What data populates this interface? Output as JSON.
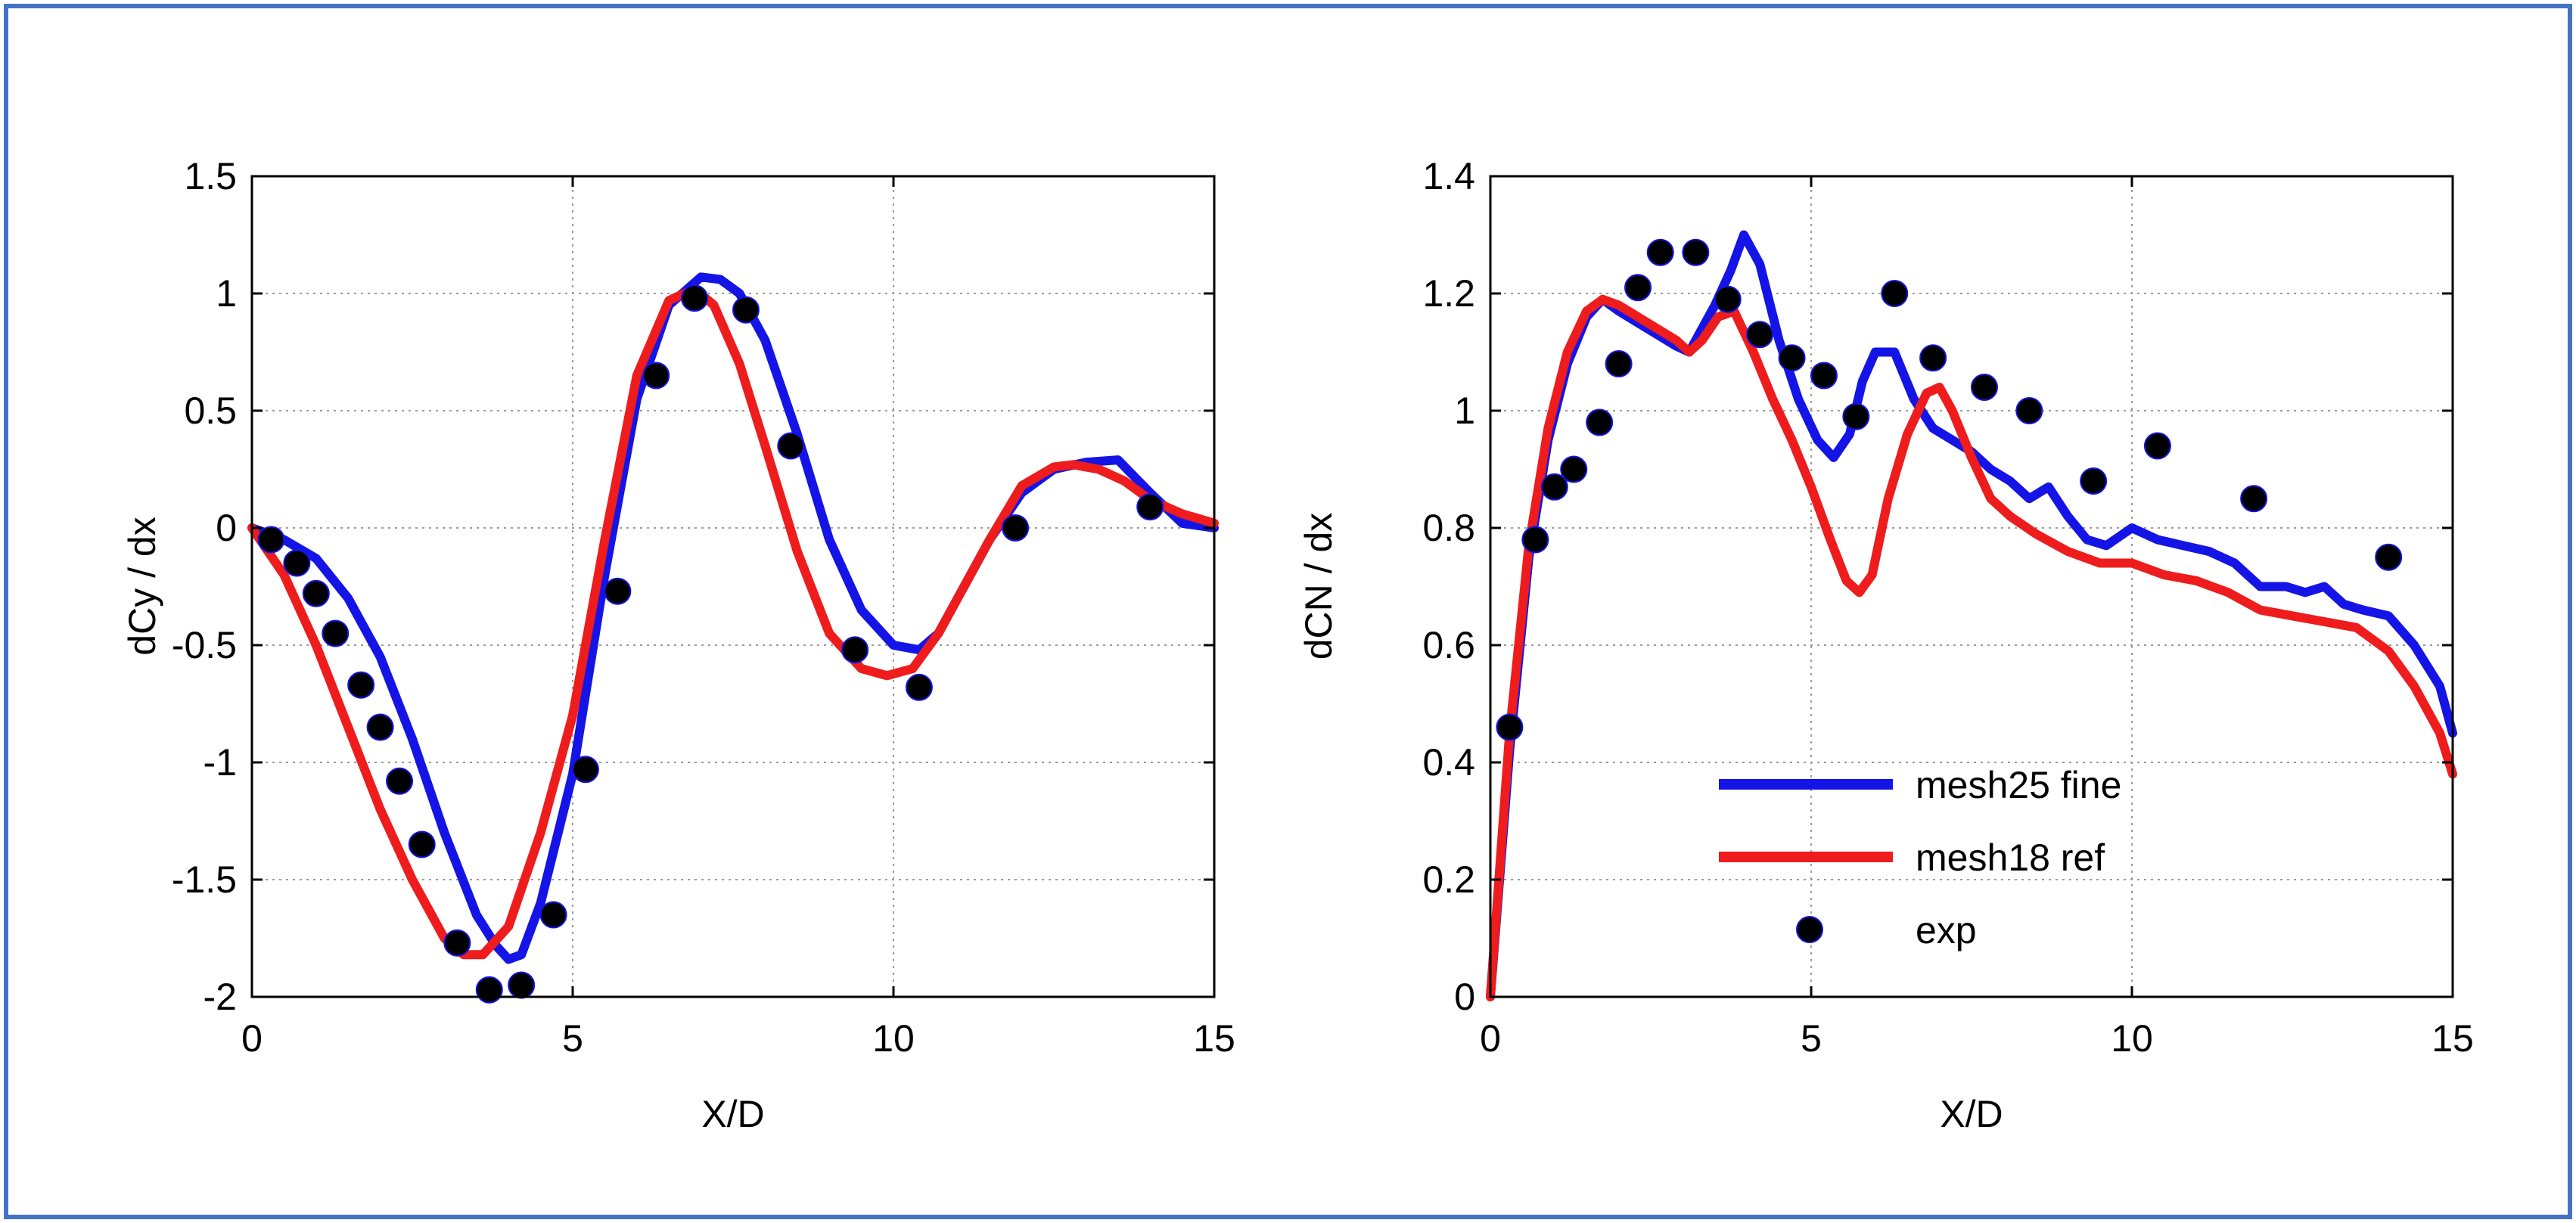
{
  "colors": {
    "blue": "#1414e6",
    "red": "#ee1c1c",
    "marker": "#000000",
    "frame": "#4472c4"
  },
  "series_names": [
    "mesh25 fine",
    "mesh18 ref",
    "exp"
  ],
  "chart_data": [
    {
      "type": "line",
      "xlabel": "X/D",
      "ylabel": "dCy / dx",
      "xlim": [
        0,
        15
      ],
      "ylim": [
        -2,
        1.5
      ],
      "xticks": [
        "0",
        "5",
        "10",
        "15"
      ],
      "yticks": [
        "-2",
        "-1.5",
        "-1",
        "-0.5",
        "0",
        "0.5",
        "1",
        "1.5"
      ],
      "grid": true,
      "series": [
        {
          "name": "mesh25 fine",
          "style": "line",
          "color": "#1414e6",
          "x": [
            0,
            0.5,
            1.0,
            1.5,
            2.0,
            2.5,
            3.0,
            3.5,
            3.8,
            4.0,
            4.2,
            4.5,
            5.0,
            5.5,
            6.0,
            6.5,
            7.0,
            7.3,
            7.6,
            8.0,
            8.5,
            9.0,
            9.5,
            10.0,
            10.4,
            10.7,
            11.0,
            11.5,
            12.0,
            12.5,
            13.0,
            13.5,
            14.0,
            14.5,
            15.0
          ],
          "y": [
            0,
            -0.05,
            -0.13,
            -0.3,
            -0.55,
            -0.9,
            -1.3,
            -1.65,
            -1.78,
            -1.84,
            -1.82,
            -1.6,
            -1.05,
            -0.2,
            0.55,
            0.95,
            1.07,
            1.06,
            1.0,
            0.8,
            0.4,
            -0.05,
            -0.35,
            -0.5,
            -0.52,
            -0.45,
            -0.3,
            -0.05,
            0.15,
            0.25,
            0.28,
            0.29,
            0.15,
            0.02,
            0.0
          ]
        },
        {
          "name": "mesh18 ref",
          "style": "line",
          "color": "#ee1c1c",
          "x": [
            0,
            0.5,
            1.0,
            1.5,
            2.0,
            2.5,
            3.0,
            3.3,
            3.6,
            4.0,
            4.5,
            5.0,
            5.5,
            6.0,
            6.5,
            6.9,
            7.2,
            7.6,
            8.0,
            8.5,
            9.0,
            9.5,
            9.9,
            10.3,
            10.7,
            11.0,
            11.5,
            12.0,
            12.5,
            12.8,
            13.2,
            13.6,
            14.0,
            14.5,
            15.0
          ],
          "y": [
            0,
            -0.2,
            -0.5,
            -0.85,
            -1.2,
            -1.5,
            -1.75,
            -1.82,
            -1.82,
            -1.7,
            -1.3,
            -0.8,
            -0.05,
            0.65,
            0.97,
            1.02,
            0.95,
            0.7,
            0.35,
            -0.1,
            -0.45,
            -0.6,
            -0.63,
            -0.6,
            -0.45,
            -0.3,
            -0.05,
            0.18,
            0.26,
            0.27,
            0.25,
            0.2,
            0.12,
            0.06,
            0.02
          ]
        },
        {
          "name": "exp",
          "style": "markers",
          "color": "#000000",
          "x": [
            0.3,
            0.7,
            1.0,
            1.3,
            1.7,
            2.0,
            2.3,
            2.65,
            3.2,
            3.7,
            4.2,
            4.7,
            5.2,
            5.7,
            6.3,
            6.9,
            7.7,
            8.4,
            9.4,
            10.4,
            11.9,
            14.0
          ],
          "y": [
            -0.05,
            -0.15,
            -0.28,
            -0.45,
            -0.67,
            -0.85,
            -1.08,
            -1.35,
            -1.77,
            -1.97,
            -1.95,
            -1.65,
            -1.03,
            -0.27,
            0.65,
            0.98,
            0.93,
            0.35,
            -0.52,
            -0.68,
            0.0,
            0.09
          ]
        }
      ]
    },
    {
      "type": "line",
      "xlabel": "X/D",
      "ylabel": "dCN / dx",
      "xlim": [
        0,
        15
      ],
      "ylim": [
        0,
        1.4
      ],
      "xticks": [
        "0",
        "5",
        "10",
        "15"
      ],
      "yticks": [
        "0",
        "0.2",
        "0.4",
        "0.6",
        "0.8",
        "1",
        "1.2",
        "1.4"
      ],
      "grid": true,
      "legend": {
        "placement": "bottom-right",
        "entries": [
          "mesh25 fine",
          "mesh18 ref",
          "exp"
        ]
      },
      "series": [
        {
          "name": "mesh25 fine",
          "style": "line",
          "color": "#1414e6",
          "x": [
            0,
            0.3,
            0.6,
            0.9,
            1.2,
            1.5,
            1.75,
            2.0,
            2.3,
            2.6,
            2.9,
            3.1,
            3.3,
            3.5,
            3.75,
            3.95,
            4.2,
            4.5,
            4.8,
            5.1,
            5.35,
            5.6,
            5.8,
            6.0,
            6.3,
            6.6,
            6.9,
            7.2,
            7.5,
            7.8,
            8.1,
            8.4,
            8.7,
            9.0,
            9.3,
            9.6,
            10.0,
            10.4,
            10.8,
            11.2,
            11.6,
            12.0,
            12.4,
            12.7,
            13.0,
            13.3,
            13.6,
            14.0,
            14.4,
            14.8,
            15.0
          ],
          "y": [
            0.0,
            0.42,
            0.75,
            0.95,
            1.08,
            1.16,
            1.19,
            1.17,
            1.15,
            1.13,
            1.11,
            1.1,
            1.14,
            1.18,
            1.24,
            1.3,
            1.25,
            1.12,
            1.02,
            0.95,
            0.92,
            0.96,
            1.05,
            1.1,
            1.1,
            1.02,
            0.97,
            0.95,
            0.93,
            0.9,
            0.88,
            0.85,
            0.87,
            0.82,
            0.78,
            0.77,
            0.8,
            0.78,
            0.77,
            0.76,
            0.74,
            0.7,
            0.7,
            0.69,
            0.7,
            0.67,
            0.66,
            0.65,
            0.6,
            0.53,
            0.45
          ]
        },
        {
          "name": "mesh18 ref",
          "style": "line",
          "color": "#ee1c1c",
          "x": [
            0,
            0.3,
            0.6,
            0.9,
            1.2,
            1.5,
            1.75,
            2.0,
            2.3,
            2.6,
            2.9,
            3.1,
            3.3,
            3.55,
            3.8,
            4.1,
            4.4,
            4.7,
            5.0,
            5.3,
            5.55,
            5.75,
            5.95,
            6.2,
            6.5,
            6.8,
            7.0,
            7.2,
            7.5,
            7.8,
            8.1,
            8.5,
            9.0,
            9.5,
            10.0,
            10.5,
            11.0,
            11.5,
            12.0,
            12.5,
            13.0,
            13.5,
            14.0,
            14.4,
            14.8,
            15.0
          ],
          "y": [
            0.0,
            0.45,
            0.77,
            0.97,
            1.1,
            1.17,
            1.19,
            1.18,
            1.16,
            1.14,
            1.12,
            1.1,
            1.12,
            1.16,
            1.17,
            1.1,
            1.02,
            0.95,
            0.87,
            0.78,
            0.71,
            0.69,
            0.72,
            0.85,
            0.96,
            1.03,
            1.04,
            1.0,
            0.92,
            0.85,
            0.82,
            0.79,
            0.76,
            0.74,
            0.74,
            0.72,
            0.71,
            0.69,
            0.66,
            0.65,
            0.64,
            0.63,
            0.59,
            0.53,
            0.45,
            0.38
          ]
        },
        {
          "name": "exp",
          "style": "markers",
          "color": "#000000",
          "x": [
            0.3,
            0.7,
            1.0,
            1.3,
            1.7,
            2.0,
            2.3,
            2.65,
            3.2,
            3.7,
            4.2,
            4.7,
            5.2,
            5.7,
            6.3,
            6.9,
            7.7,
            8.4,
            9.4,
            10.4,
            11.9,
            14.0
          ],
          "y": [
            0.46,
            0.78,
            0.87,
            0.9,
            0.98,
            1.08,
            1.21,
            1.27,
            1.27,
            1.19,
            1.13,
            1.09,
            1.06,
            0.99,
            1.2,
            1.09,
            1.04,
            1.0,
            0.88,
            0.94,
            0.85,
            0.75
          ]
        }
      ]
    }
  ]
}
